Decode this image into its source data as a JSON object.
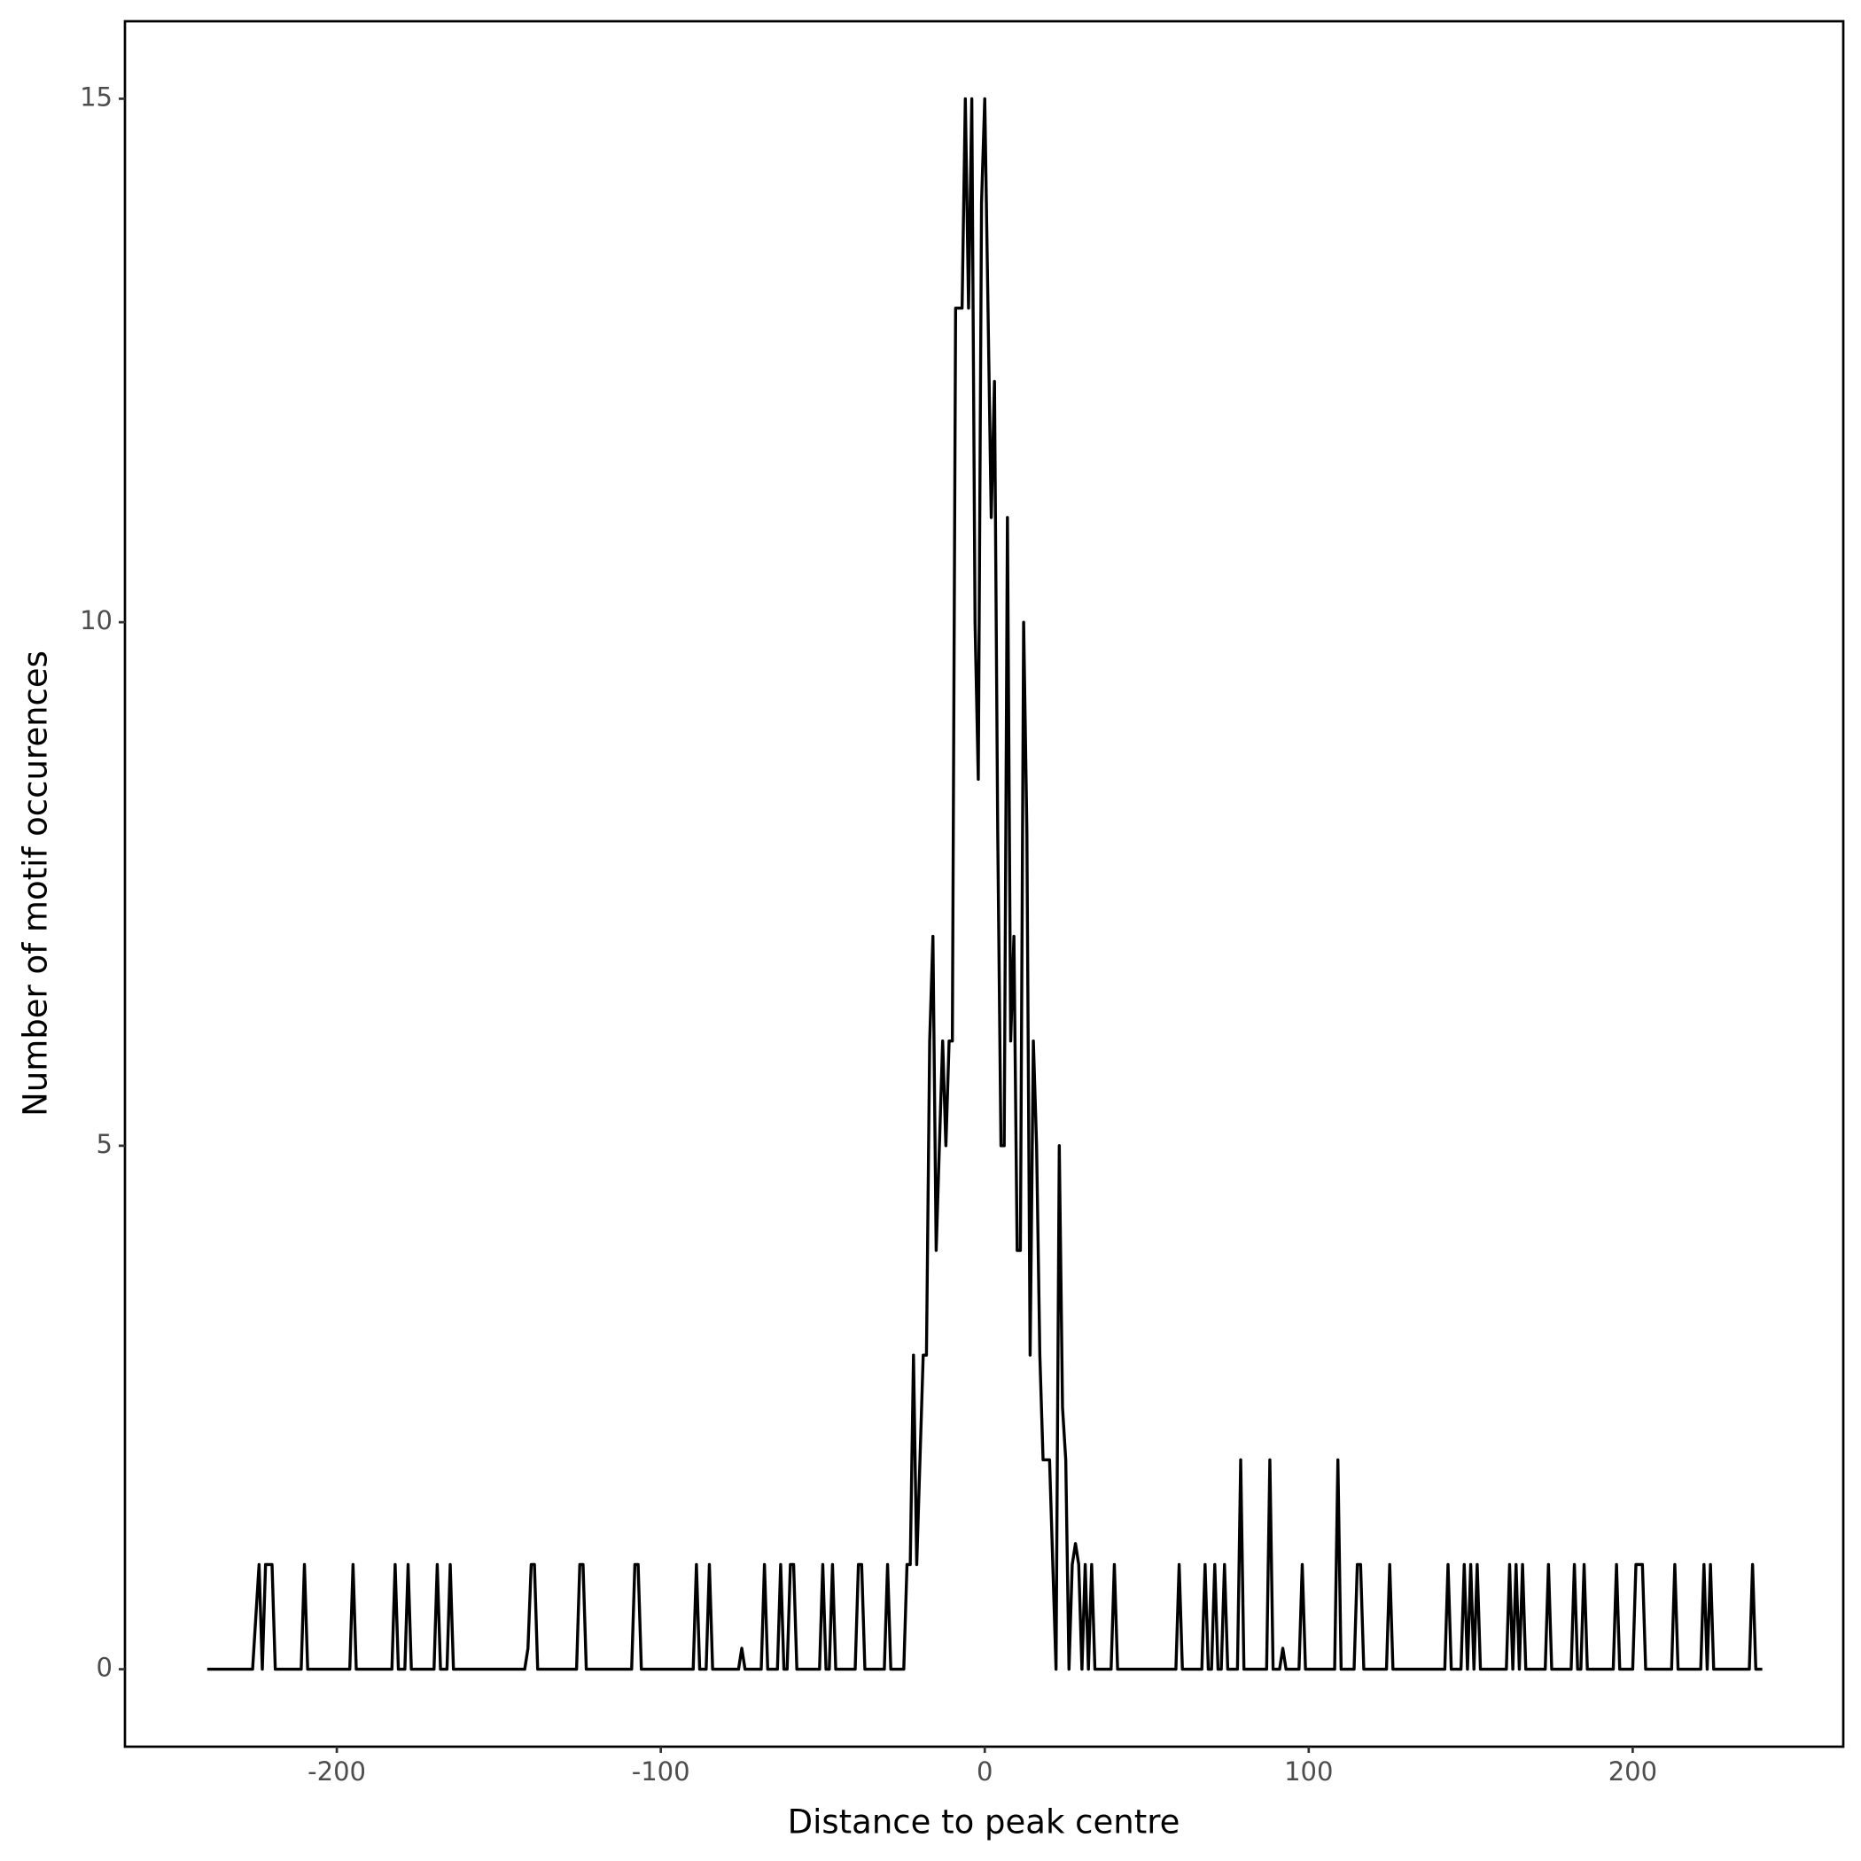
{
  "chart_data": {
    "type": "line",
    "xlabel": "Distance to peak centre",
    "ylabel": "Number of motif occurences",
    "color": "#000000",
    "x": [
      -240,
      -226,
      -224,
      -223,
      -222,
      -220,
      -219,
      -211,
      -210,
      -209,
      -196,
      -195,
      -194,
      -183,
      -182,
      -181,
      -179,
      -178,
      -177,
      -170,
      -169,
      -168,
      -166,
      -165,
      -164,
      -142,
      -141,
      -140,
      -139,
      -138,
      -126,
      -125,
      -124,
      -123,
      -109,
      -108,
      -107,
      -106,
      -90,
      -89,
      -88,
      -86,
      -85,
      -84,
      -76,
      -75,
      -74,
      -69,
      -68,
      -67,
      -64,
      -63,
      -62,
      -61,
      -60,
      -59,
      -58,
      -51,
      -50,
      -49,
      -48,
      -47,
      -46,
      -40,
      -39,
      -38,
      -37,
      -31,
      -30,
      -29,
      -25,
      -24,
      -23,
      -22,
      -21,
      -20,
      -19,
      -18,
      -17,
      -16,
      -15,
      -14,
      -13,
      -12,
      -11,
      -10,
      -9,
      -8,
      -7,
      -6,
      -5,
      -4,
      -3,
      -2,
      -1,
      0,
      1,
      2,
      3,
      4,
      5,
      6,
      7,
      8,
      9,
      10,
      11,
      12,
      13,
      14,
      15,
      16,
      17,
      18,
      19,
      20,
      21,
      22,
      23,
      24,
      25,
      26,
      27,
      28,
      29,
      30,
      31,
      32,
      33,
      34,
      39,
      40,
      41,
      59,
      60,
      61,
      67,
      68,
      69,
      70,
      71,
      72,
      73,
      74,
      75,
      78,
      79,
      80,
      87,
      88,
      89,
      91,
      92,
      93,
      97,
      98,
      99,
      108,
      109,
      110,
      114,
      115,
      116,
      117,
      124,
      125,
      126,
      142,
      143,
      144,
      147,
      148,
      149,
      150,
      151,
      152,
      153,
      161,
      162,
      163,
      164,
      165,
      166,
      167,
      173,
      174,
      175,
      181,
      182,
      183,
      184,
      185,
      186,
      194,
      195,
      196,
      200,
      201,
      203,
      204,
      212,
      213,
      214,
      221,
      222,
      223,
      224,
      225,
      236,
      237,
      238,
      240
    ],
    "values": [
      0,
      0,
      1,
      0,
      1,
      1,
      0,
      0,
      1,
      0,
      0,
      1,
      0,
      0,
      1,
      0,
      0,
      1,
      0,
      0,
      1,
      0,
      0,
      1,
      0,
      0,
      0.2,
      1,
      1,
      0,
      0,
      1,
      1,
      0,
      0,
      1,
      1,
      0,
      0,
      1,
      0,
      0,
      1,
      0,
      0,
      0.2,
      0,
      0,
      1,
      0,
      0,
      1,
      0,
      0,
      1,
      1,
      0,
      0,
      1,
      0,
      0,
      1,
      0,
      0,
      1,
      1,
      0,
      0,
      1,
      0,
      0,
      1,
      1,
      3,
      1,
      2,
      3,
      3,
      6,
      7,
      4,
      5,
      6,
      5,
      6,
      6,
      13,
      13,
      13,
      15,
      13,
      15,
      10,
      8.5,
      14,
      15,
      13,
      11,
      12.3,
      8,
      5,
      5,
      11,
      6,
      7,
      4,
      4,
      10,
      8,
      3,
      6,
      5,
      3,
      2,
      2,
      2,
      1,
      0,
      5,
      2.5,
      2,
      0,
      1,
      1.2,
      1,
      0,
      1,
      0,
      1,
      0,
      0,
      1,
      0,
      0,
      1,
      0,
      0,
      1,
      0,
      0,
      1,
      0,
      0,
      1,
      0,
      0,
      2,
      0,
      0,
      2,
      0,
      0,
      0.2,
      0,
      0,
      1,
      0,
      0,
      2,
      0,
      0,
      1,
      1,
      0,
      0,
      1,
      0,
      0,
      1,
      0,
      0,
      1,
      0,
      1,
      0,
      1,
      0,
      0,
      1,
      0,
      1,
      0,
      1,
      0,
      0,
      1,
      0,
      0,
      1,
      0,
      0,
      1,
      0,
      0,
      1,
      0,
      0,
      1,
      1,
      0,
      0,
      1,
      0,
      0,
      1,
      0,
      1,
      0,
      0,
      1,
      0,
      0
    ],
    "xlim": [
      -265.4,
      265
    ],
    "ylim": [
      -0.74,
      15.74
    ],
    "xticks": [
      -200,
      -100,
      0,
      100,
      200
    ],
    "yticks": [
      0,
      5,
      10,
      15
    ]
  }
}
